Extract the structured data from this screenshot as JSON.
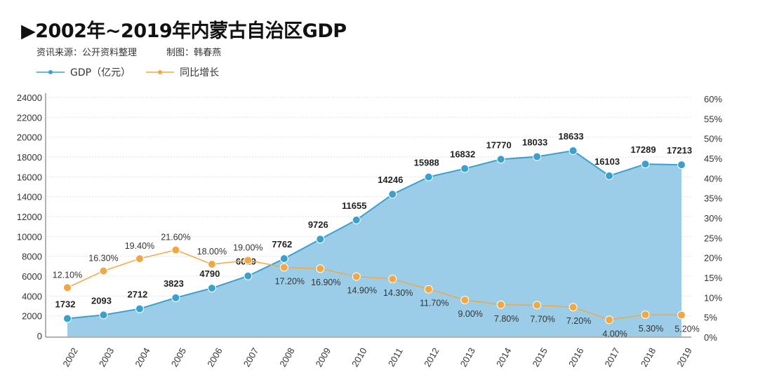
{
  "header": {
    "title": "▶2002年~2019年内蒙古自治区GDP",
    "source": "资讯来源：公开资料整理",
    "author": "制图：韩春燕"
  },
  "colors": {
    "gdp_line": "#3aa0d0",
    "gdp_area": "#9ccde8",
    "growth_line": "#f2a742"
  },
  "chart_data": {
    "type": "line",
    "categories": [
      "2002",
      "2003",
      "2004",
      "2005",
      "2006",
      "2007",
      "2008",
      "2009",
      "2010",
      "2011",
      "2012",
      "2013",
      "2014",
      "2015",
      "2016",
      "2017",
      "2018",
      "2019"
    ],
    "series": [
      {
        "name": "GDP（亿元）",
        "axis": "left",
        "style": "area-line",
        "values": [
          1732,
          2093,
          2712,
          3823,
          4790,
          6019,
          7762,
          9726,
          11655,
          14246,
          15988,
          16832,
          17770,
          18033,
          18633,
          16103,
          17289,
          17213
        ]
      },
      {
        "name": "同比增长",
        "axis": "right",
        "style": "line",
        "values": [
          12.1,
          16.3,
          19.4,
          21.6,
          18.0,
          19.0,
          17.2,
          16.9,
          14.9,
          14.3,
          11.7,
          9.0,
          7.8,
          7.7,
          7.2,
          4.0,
          5.3,
          5.2
        ],
        "labels": [
          "12.10%",
          "16.30%",
          "19.40%",
          "21.60%",
          "18.00%",
          "19.00%",
          "17.20%",
          "16.90%",
          "14.90%",
          "14.30%",
          "11.70%",
          "9.00%",
          "7.80%",
          "7.70%",
          "7.20%",
          "4.00%",
          "5.30%",
          "5.20%"
        ]
      }
    ],
    "y_left": {
      "range": [
        0,
        24000
      ],
      "ticks": [
        "0",
        "2000",
        "4000",
        "6000",
        "8000",
        "10000",
        "12000",
        "14000",
        "16000",
        "18000",
        "20000",
        "22000",
        "24000"
      ]
    },
    "y_right": {
      "range": [
        0,
        60
      ],
      "ticks": [
        "0%",
        "5%",
        "10%",
        "15%",
        "20%",
        "25%",
        "30%",
        "35%",
        "40%",
        "45%",
        "50%",
        "55%",
        "60%"
      ]
    },
    "grid": true,
    "legend": "top-left"
  }
}
